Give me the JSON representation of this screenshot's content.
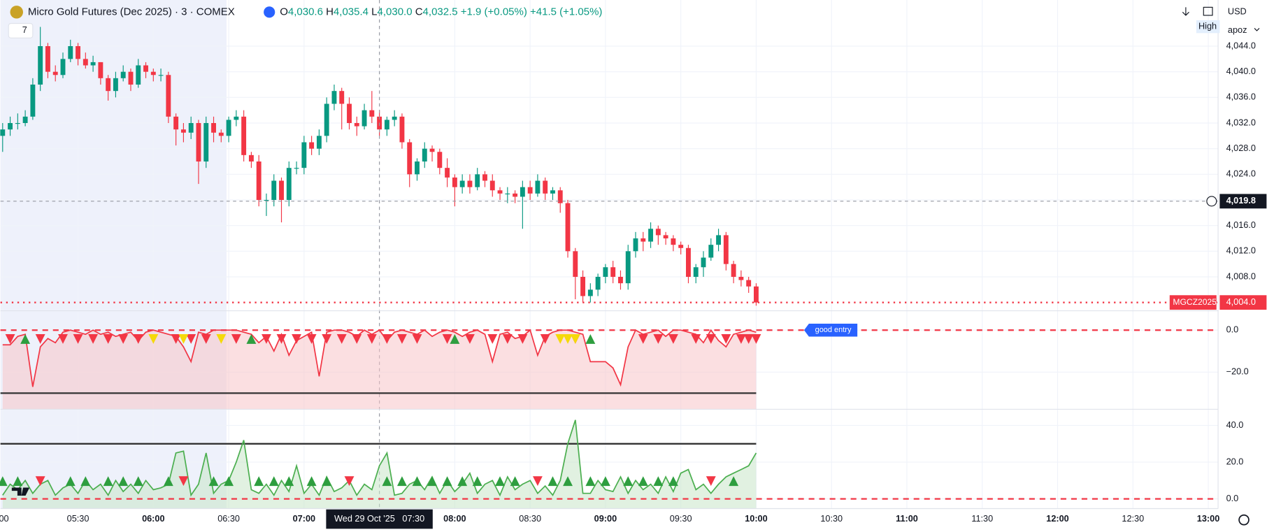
{
  "header": {
    "title": "Micro Gold Futures (Dec 2025) · 3 · COMEX",
    "ohlc": [
      {
        "key": "O",
        "value": "4,030.6"
      },
      {
        "key": "H",
        "value": "4,035.4"
      },
      {
        "key": "L",
        "value": "4,030.0"
      },
      {
        "key": "C",
        "value": "4,032.5"
      }
    ],
    "change": "+1.9 (+0.05%)",
    "change_total": "+41.5 (+1.05%)",
    "indicator_count": "7"
  },
  "toolbar": {
    "currency": "USD",
    "user": "apoz",
    "mode": "High"
  },
  "chart_data": [
    {
      "type": "candlestick",
      "up_color": "#089981",
      "down_color": "#f23645",
      "open": [
        4030,
        4031,
        4032,
        4032,
        4033,
        4038,
        4044,
        4040,
        4039.5,
        4042,
        4044,
        4042,
        4041,
        4041.5,
        4039,
        4037,
        4039,
        4040,
        4038,
        4041,
        4040,
        4039.5,
        4039.5,
        4033,
        4031,
        4030.5,
        4032,
        4026,
        4032,
        4030.5,
        4030,
        4032.5,
        4033,
        4027,
        4026,
        4020,
        4020,
        4023,
        4020,
        4025,
        4025,
        4029,
        4028,
        4030,
        4035,
        4037,
        4035,
        4032,
        4031.5,
        4034,
        4033,
        4031,
        4032.5,
        4033,
        4029,
        4024,
        4026,
        4028,
        4027.5,
        4025,
        4023.5,
        4022,
        4023,
        4022,
        4024,
        4023,
        4021.5,
        4021,
        4021,
        4020.5,
        4022,
        4021,
        4023,
        4021,
        4021.5,
        4019.5,
        4012,
        4008,
        4005,
        4006,
        4008,
        4009.5,
        4008,
        4007,
        4012,
        4014,
        4013.5,
        4015.5,
        4014.5,
        4014,
        4013,
        4012.5,
        4008,
        4009.5,
        4011,
        4013,
        4014.5,
        4010,
        4008,
        4007.5,
        4006.5
      ],
      "high": [
        4032,
        4033,
        4033.5,
        4034,
        4039,
        4047,
        4044.5,
        4041,
        4043,
        4045,
        4044.5,
        4043,
        4042.5,
        4041.5,
        4039.5,
        4040,
        4041,
        4040.5,
        4042,
        4041.5,
        4040.5,
        4040.5,
        4040,
        4033.5,
        4032,
        4033,
        4032.5,
        4033,
        4033,
        4031,
        4033,
        4034,
        4034,
        4027.5,
        4027,
        4021,
        4024,
        4023.5,
        4026,
        4026,
        4030,
        4030,
        4031,
        4036,
        4038,
        4037.5,
        4036,
        4033,
        4035,
        4037,
        4034,
        4033,
        4034,
        4033.5,
        4029.5,
        4026.5,
        4029,
        4028.5,
        4028,
        4026.5,
        4024,
        4024,
        4024,
        4025,
        4024.5,
        4024,
        4022,
        4022,
        4021.5,
        4023,
        4023,
        4024,
        4023.5,
        4022,
        4022,
        4020,
        4012.5,
        4009,
        4007,
        4008.5,
        4010,
        4010.5,
        4009,
        4013,
        4015,
        4015,
        4016.5,
        4016,
        4015,
        4014.5,
        4013.5,
        4013,
        4010,
        4012,
        4014,
        4015.5,
        4015,
        4010.5,
        4009,
        4008,
        4007
      ],
      "low": [
        4027.5,
        4030,
        4031,
        4031.5,
        4032.5,
        4037,
        4039,
        4038.5,
        4039,
        4041.5,
        4041,
        4040.5,
        4040,
        4038,
        4035.5,
        4036,
        4038.5,
        4037,
        4037.5,
        4039,
        4038.5,
        4038.5,
        4032,
        4028.5,
        4029,
        4029.5,
        4022.5,
        4025,
        4029,
        4029,
        4029,
        4031.5,
        4026,
        4025,
        4019,
        4017.5,
        4019,
        4016.5,
        4019,
        4024,
        4024,
        4027,
        4027,
        4029,
        4034,
        4031,
        4031,
        4030,
        4031,
        4032,
        4030,
        4030,
        4031.5,
        4028,
        4022,
        4023,
        4025,
        4026,
        4024,
        4022,
        4019,
        4021,
        4021,
        4021.5,
        4022,
        4020.5,
        4020,
        4019.5,
        4019.5,
        4015.5,
        4020,
        4020.5,
        4020,
        4020,
        4018,
        4011,
        4004.5,
        4004,
        4004,
        4005,
        4007,
        4007,
        4006,
        4006,
        4011,
        4012,
        4012.5,
        4013,
        4013,
        4012,
        4011.5,
        4007,
        4007,
        4008,
        4010.5,
        4012,
        4009,
        4007,
        4006.5,
        4005.5,
        4003.5
      ],
      "close": [
        4031,
        4032,
        4032,
        4033,
        4038,
        4044,
        4040,
        4039.5,
        4042,
        4044,
        4042,
        4041,
        4041.5,
        4039,
        4037,
        4039,
        4040,
        4038,
        4041,
        4040,
        4039.5,
        4039.5,
        4033,
        4031,
        4030.5,
        4032,
        4026,
        4032,
        4030.5,
        4030,
        4032.5,
        4033,
        4027,
        4026,
        4020,
        4020,
        4023,
        4020,
        4025,
        4025,
        4029,
        4028,
        4030,
        4035,
        4037,
        4035,
        4032,
        4031.5,
        4034,
        4033,
        4031,
        4032.5,
        4033,
        4029,
        4024,
        4026,
        4028,
        4027.5,
        4025,
        4023.5,
        4022,
        4023,
        4022,
        4024,
        4023,
        4021.5,
        4021,
        4021,
        4020.5,
        4022,
        4021,
        4023,
        4021,
        4021.5,
        4019.5,
        4012,
        4008,
        4005,
        4006,
        4008,
        4009.5,
        4008,
        4007,
        4012,
        4014,
        4013.5,
        4015.5,
        4014.5,
        4014,
        4013,
        4012.5,
        4008,
        4009.5,
        4011,
        4013,
        4014.5,
        4010,
        4008,
        4007.5,
        4006.5,
        4004
      ],
      "xlim": [
        -0.29,
        161.3
      ],
      "xticks": [
        {
          "value": 0,
          "label": ":00"
        },
        {
          "value": 10,
          "label": "05:30"
        },
        {
          "value": 20,
          "label": "06:00"
        },
        {
          "value": 30,
          "label": "06:30"
        },
        {
          "value": 40,
          "label": "07:00"
        },
        {
          "value": 60,
          "label": "08:00"
        },
        {
          "value": 70,
          "label": "08:30"
        },
        {
          "value": 80,
          "label": "09:00"
        },
        {
          "value": 90,
          "label": "09:30"
        },
        {
          "value": 100,
          "label": "10:00"
        },
        {
          "value": 110,
          "label": "10:30"
        },
        {
          "value": 120,
          "label": "11:00"
        },
        {
          "value": 130,
          "label": "11:30"
        },
        {
          "value": 140,
          "label": "12:00"
        },
        {
          "value": 150,
          "label": "12:30"
        },
        {
          "value": 160,
          "label": "13:00"
        }
      ],
      "ylim": [
        4002.7,
        4051.2
      ],
      "yticks": [
        {
          "value": 4008,
          "label": "4,008.0"
        },
        {
          "value": 4012,
          "label": "4,012.0"
        },
        {
          "value": 4016,
          "label": "4,016.0"
        },
        {
          "value": 4020,
          "label": "4,020.0"
        },
        {
          "value": 4024,
          "label": "4,024.0"
        },
        {
          "value": 4028,
          "label": "4,028.0"
        },
        {
          "value": 4032,
          "label": "4,032.0"
        },
        {
          "value": 4036,
          "label": "4,036.0"
        },
        {
          "value": 4040,
          "label": "4,040.0"
        },
        {
          "value": 4044,
          "label": "4,044.0"
        }
      ],
      "grid": true,
      "crosshair_y": {
        "value": 4019.8,
        "label": "4,019.8"
      },
      "crosshair_x": {
        "value": 50,
        "label": "Wed 29 Oct '25   07:30"
      },
      "last_price": {
        "value": 4004.0,
        "label": "4,004.0",
        "name": "MGCZ2025",
        "color": "#f23645"
      }
    },
    {
      "type": "line",
      "color": "#f23645",
      "fill": "#f8c5c8",
      "values": [
        -7,
        -7,
        -3,
        -2,
        -27,
        -8,
        -4,
        -6,
        -1,
        0,
        -1,
        -2,
        0,
        -2,
        -1,
        -3,
        -2,
        -1,
        -5,
        -1,
        0,
        -1,
        -2,
        -3,
        -8,
        -15,
        -1,
        -2,
        0,
        0,
        0,
        0,
        -1,
        -2,
        -6,
        -3,
        -10,
        -2,
        -12,
        -5,
        -3,
        -1,
        -22,
        -1,
        0,
        0,
        -1,
        -3,
        0,
        -2,
        0,
        -5,
        -1,
        0,
        -1,
        -2,
        0,
        -3,
        -1,
        0,
        -1,
        -3,
        -1,
        0,
        -2,
        -15,
        -2,
        -1,
        -4,
        -3,
        0,
        -12,
        -3,
        -1,
        0,
        0,
        -1,
        -2,
        -15,
        -15,
        -15,
        -18,
        -26,
        -8,
        0,
        -2,
        -1,
        0,
        -3,
        0,
        0,
        -1,
        -2,
        -6,
        0,
        -5,
        -8,
        -2,
        -1,
        0,
        -1
      ],
      "ylim": [
        -37.7,
        9.2
      ],
      "yticks": [
        {
          "value": 0,
          "label": "0.0"
        },
        {
          "value": -20,
          "label": "−20.0"
        }
      ],
      "levels": [
        {
          "value": 0,
          "color": "#f23645",
          "dash": true
        },
        {
          "value": -30,
          "color": "#333333",
          "dash": false
        }
      ],
      "down_markers": [
        1,
        5,
        8,
        10,
        12,
        14,
        16,
        18,
        23,
        25,
        27,
        31,
        35,
        37,
        39,
        41,
        43,
        45,
        47,
        49,
        51,
        53,
        55,
        59,
        62,
        65,
        67,
        69,
        72,
        76,
        85,
        87,
        89,
        92,
        94,
        96,
        98,
        99,
        100
      ],
      "up_markers": [
        3,
        33,
        60,
        78
      ],
      "neutral_markers": [
        20,
        24,
        29,
        74,
        75,
        76
      ],
      "annotations": [
        {
          "text": "good entry",
          "x": 110,
          "y": 0
        }
      ]
    },
    {
      "type": "line",
      "color": "#4caf50",
      "fill": "#c8e6c9",
      "values": [
        2,
        8,
        5,
        10,
        3,
        8,
        10,
        2,
        6,
        8,
        3,
        10,
        5,
        8,
        2,
        10,
        4,
        8,
        3,
        10,
        5,
        6,
        8,
        25,
        26,
        2,
        8,
        25,
        3,
        8,
        10,
        20,
        32,
        5,
        3,
        8,
        2,
        10,
        4,
        18,
        3,
        8,
        2,
        12,
        4,
        6,
        10,
        2,
        8,
        5,
        18,
        25,
        2,
        3,
        8,
        10,
        5,
        12,
        3,
        10,
        4,
        8,
        14,
        3,
        8,
        10,
        2,
        12,
        5,
        8,
        10,
        3,
        7,
        2,
        10,
        30,
        43,
        3,
        3,
        10,
        5,
        4,
        12,
        3,
        10,
        5,
        8,
        3,
        12,
        4,
        14,
        16,
        5,
        8,
        3,
        8,
        12,
        14,
        16,
        18,
        25
      ],
      "ylim": [
        -5.3,
        48.8
      ],
      "yticks": [
        {
          "value": 40,
          "label": "40.0"
        },
        {
          "value": 20,
          "label": "20.0"
        },
        {
          "value": 0,
          "label": "0.0"
        }
      ],
      "levels": [
        {
          "value": 30,
          "color": "#333333",
          "dash": false
        },
        {
          "value": 0,
          "color": "#f23645",
          "dash": true
        }
      ],
      "up_markers": [
        0,
        2,
        9,
        11,
        14,
        16,
        18,
        22,
        28,
        30,
        34,
        36,
        38,
        41,
        43,
        51,
        53,
        55,
        57,
        59,
        61,
        63,
        66,
        68,
        73,
        75,
        78,
        80,
        83,
        85,
        87,
        89,
        97
      ],
      "down_markers": [
        5,
        24,
        46,
        71,
        94
      ]
    }
  ]
}
